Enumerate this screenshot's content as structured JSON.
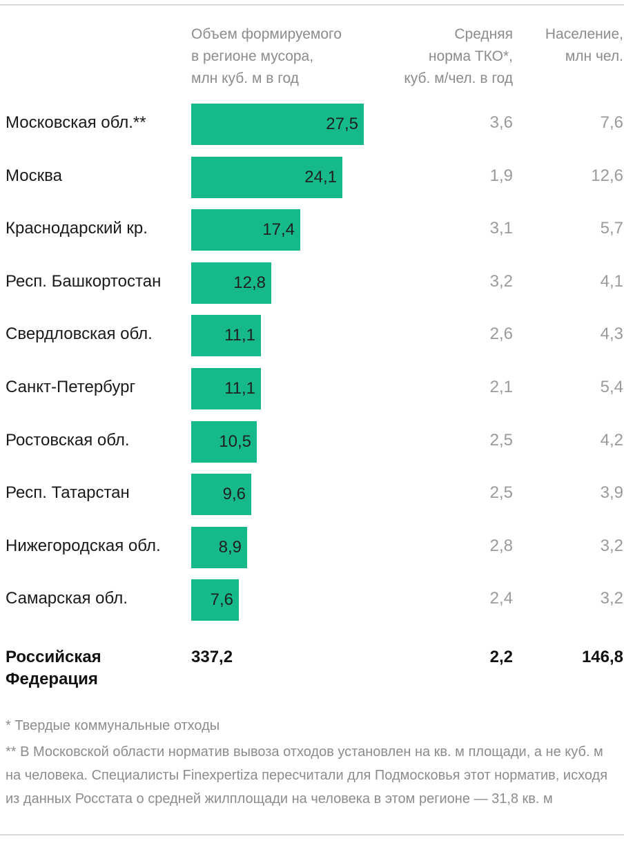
{
  "header": {
    "col_volume": "Объем формируемого\nв регионе мусора,\nмлн куб. м в год",
    "col_norm": "Средняя\nнорма ТКО*,\nкуб. м/чел. в год",
    "col_population": "Население,\nмлн чел."
  },
  "chart_data": {
    "type": "bar",
    "categories": [
      "Московская обл.**",
      "Москва",
      "Краснодарский кр.",
      "Респ. Башкортостан",
      "Свердловская обл.",
      "Санкт-Петербург",
      "Ростовская обл.",
      "Респ. Татарстан",
      "Нижегородская обл.",
      "Самарская обл."
    ],
    "values": [
      27.5,
      24.1,
      17.4,
      12.8,
      11.1,
      11.1,
      10.5,
      9.6,
      8.9,
      7.6
    ],
    "value_labels": [
      "27,5",
      "24,1",
      "17,4",
      "12,8",
      "11,1",
      "11,1",
      "10,5",
      "9,6",
      "8,9",
      "7,6"
    ],
    "norm_labels": [
      "3,6",
      "1,9",
      "3,1",
      "3,2",
      "2,6",
      "2,1",
      "2,5",
      "2,5",
      "2,8",
      "2,4"
    ],
    "population_labels": [
      "7,6",
      "12,6",
      "5,7",
      "4,1",
      "4,3",
      "5,4",
      "4,2",
      "3,9",
      "3,2",
      "3,2"
    ],
    "bar_color": "#16b98a",
    "title": "",
    "xlabel": "",
    "ylabel": ""
  },
  "total": {
    "label": "Российская\nФедерация",
    "volume": "337,2",
    "norm": "2,2",
    "population": "146,8"
  },
  "footnotes": {
    "note1": "* Твердые коммунальные отходы",
    "note2": "** В Московской области норматив вывоза отходов установлен на кв. м площади, а не куб. м на человека. Специалисты Finexpertiza пересчитали для Подмосковья этот норматив, исходя из данных Росстата о средней жилплощади на человека в этом регионе — 31,8 кв. м"
  },
  "colors": {
    "accent": "#16b98a",
    "muted_text": "#8c8c8c",
    "text": "#1a1a1a"
  }
}
